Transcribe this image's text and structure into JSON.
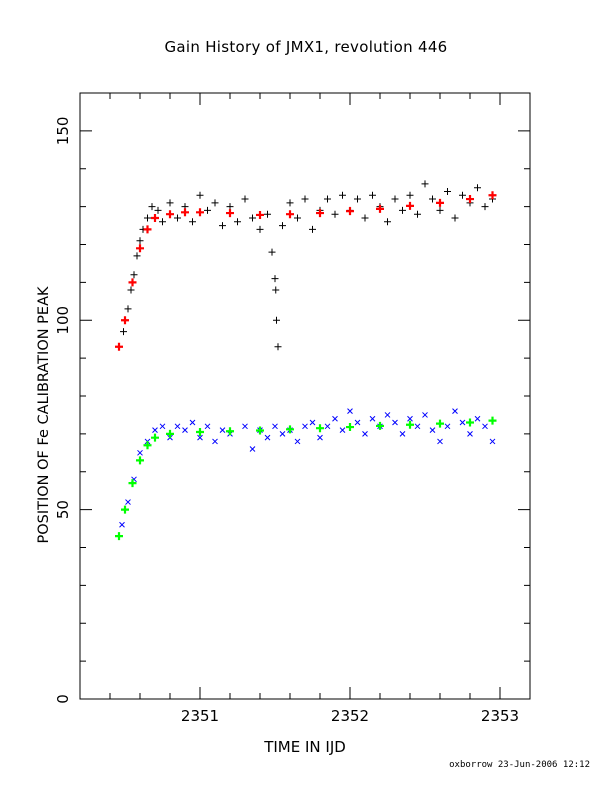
{
  "chart_data": {
    "type": "scatter",
    "title": "Gain History of JMX1, revolution 446",
    "xlabel": "TIME IN IJD",
    "ylabel": "POSITION OF Fe CALIBRATION PEAK",
    "xlim": [
      2350.2,
      2353.2
    ],
    "ylim": [
      0,
      160
    ],
    "xticks": [
      2351,
      2352,
      2353
    ],
    "xtick_labels": [
      "2351",
      "2352",
      "2353"
    ],
    "yticks": [
      0,
      50,
      100,
      150
    ],
    "ytick_labels": [
      "0",
      "50",
      "100",
      "150"
    ],
    "grid": false,
    "series": [
      {
        "marker": "plus",
        "color": "#000000",
        "points": [
          [
            2350.49,
            97
          ],
          [
            2350.5,
            100
          ],
          [
            2350.52,
            103
          ],
          [
            2350.54,
            108
          ],
          [
            2350.56,
            112
          ],
          [
            2350.58,
            117
          ],
          [
            2350.6,
            121
          ],
          [
            2350.62,
            124
          ],
          [
            2350.65,
            127
          ],
          [
            2350.68,
            130
          ],
          [
            2350.72,
            129
          ],
          [
            2350.75,
            126
          ],
          [
            2350.8,
            131
          ],
          [
            2350.85,
            127
          ],
          [
            2350.9,
            130
          ],
          [
            2350.95,
            126
          ],
          [
            2351.0,
            133
          ],
          [
            2351.05,
            129
          ],
          [
            2351.1,
            131
          ],
          [
            2351.15,
            125
          ],
          [
            2351.2,
            130
          ],
          [
            2351.25,
            126
          ],
          [
            2351.3,
            132
          ],
          [
            2351.35,
            127
          ],
          [
            2351.4,
            124
          ],
          [
            2351.45,
            128
          ],
          [
            2351.48,
            118
          ],
          [
            2351.5,
            111
          ],
          [
            2351.505,
            108
          ],
          [
            2351.51,
            100
          ],
          [
            2351.52,
            93
          ],
          [
            2351.55,
            125
          ],
          [
            2351.6,
            131
          ],
          [
            2351.65,
            127
          ],
          [
            2351.7,
            132
          ],
          [
            2351.75,
            124
          ],
          [
            2351.8,
            129
          ],
          [
            2351.85,
            132
          ],
          [
            2351.9,
            128
          ],
          [
            2351.95,
            133
          ],
          [
            2352.0,
            129
          ],
          [
            2352.05,
            132
          ],
          [
            2352.1,
            127
          ],
          [
            2352.15,
            133
          ],
          [
            2352.2,
            130
          ],
          [
            2352.25,
            126
          ],
          [
            2352.3,
            132
          ],
          [
            2352.35,
            129
          ],
          [
            2352.4,
            133
          ],
          [
            2352.45,
            128
          ],
          [
            2352.5,
            136
          ],
          [
            2352.55,
            132
          ],
          [
            2352.6,
            129
          ],
          [
            2352.65,
            134
          ],
          [
            2352.7,
            127
          ],
          [
            2352.75,
            133
          ],
          [
            2352.8,
            131
          ],
          [
            2352.85,
            135
          ],
          [
            2352.9,
            130
          ],
          [
            2352.95,
            132
          ]
        ]
      },
      {
        "marker": "plus",
        "color": "#ff0000",
        "role": "fit",
        "points": [
          [
            2350.46,
            93
          ],
          [
            2350.5,
            100
          ],
          [
            2350.55,
            110
          ],
          [
            2350.6,
            119
          ],
          [
            2350.65,
            124
          ],
          [
            2350.7,
            127
          ],
          [
            2350.8,
            128
          ],
          [
            2350.9,
            128.5
          ],
          [
            2351.0,
            128.5
          ],
          [
            2351.2,
            128.3
          ],
          [
            2351.4,
            127.8
          ],
          [
            2351.6,
            128.0
          ],
          [
            2351.8,
            128.3
          ],
          [
            2352.0,
            128.8
          ],
          [
            2352.2,
            129.4
          ],
          [
            2352.4,
            130.2
          ],
          [
            2352.6,
            131.0
          ],
          [
            2352.8,
            132.0
          ],
          [
            2352.95,
            133
          ]
        ]
      },
      {
        "marker": "cross",
        "color": "#0000ff",
        "points": [
          [
            2350.48,
            46
          ],
          [
            2350.52,
            52
          ],
          [
            2350.56,
            58
          ],
          [
            2350.6,
            65
          ],
          [
            2350.65,
            68
          ],
          [
            2350.7,
            71
          ],
          [
            2350.75,
            72
          ],
          [
            2350.8,
            69
          ],
          [
            2350.85,
            72
          ],
          [
            2350.9,
            71
          ],
          [
            2350.95,
            73
          ],
          [
            2351.0,
            69
          ],
          [
            2351.05,
            72
          ],
          [
            2351.1,
            68
          ],
          [
            2351.15,
            71
          ],
          [
            2351.2,
            70
          ],
          [
            2351.3,
            72
          ],
          [
            2351.35,
            66
          ],
          [
            2351.4,
            71
          ],
          [
            2351.45,
            69
          ],
          [
            2351.5,
            72
          ],
          [
            2351.55,
            70
          ],
          [
            2351.6,
            71
          ],
          [
            2351.65,
            68
          ],
          [
            2351.7,
            72
          ],
          [
            2351.75,
            73
          ],
          [
            2351.8,
            69
          ],
          [
            2351.85,
            72
          ],
          [
            2351.9,
            74
          ],
          [
            2351.95,
            71
          ],
          [
            2352.0,
            76
          ],
          [
            2352.05,
            73
          ],
          [
            2352.1,
            70
          ],
          [
            2352.15,
            74
          ],
          [
            2352.2,
            72
          ],
          [
            2352.25,
            75
          ],
          [
            2352.3,
            73
          ],
          [
            2352.35,
            70
          ],
          [
            2352.4,
            74
          ],
          [
            2352.45,
            72
          ],
          [
            2352.5,
            75
          ],
          [
            2352.55,
            71
          ],
          [
            2352.6,
            68
          ],
          [
            2352.65,
            72
          ],
          [
            2352.7,
            76
          ],
          [
            2352.75,
            73
          ],
          [
            2352.8,
            70
          ],
          [
            2352.85,
            74
          ],
          [
            2352.9,
            72
          ],
          [
            2352.95,
            68
          ]
        ]
      },
      {
        "marker": "plus",
        "color": "#00ff00",
        "role": "fit",
        "points": [
          [
            2350.46,
            43
          ],
          [
            2350.5,
            50
          ],
          [
            2350.55,
            57
          ],
          [
            2350.6,
            63
          ],
          [
            2350.65,
            67
          ],
          [
            2350.7,
            69
          ],
          [
            2350.8,
            70
          ],
          [
            2351.0,
            70.5
          ],
          [
            2351.2,
            70.7
          ],
          [
            2351.4,
            70.9
          ],
          [
            2351.6,
            71.2
          ],
          [
            2351.8,
            71.5
          ],
          [
            2352.0,
            71.8
          ],
          [
            2352.2,
            72.1
          ],
          [
            2352.4,
            72.4
          ],
          [
            2352.6,
            72.7
          ],
          [
            2352.8,
            73.0
          ],
          [
            2352.95,
            73.5
          ]
        ]
      }
    ]
  },
  "footer": {
    "credit": "oxborrow 23-Jun-2006 12:12"
  }
}
